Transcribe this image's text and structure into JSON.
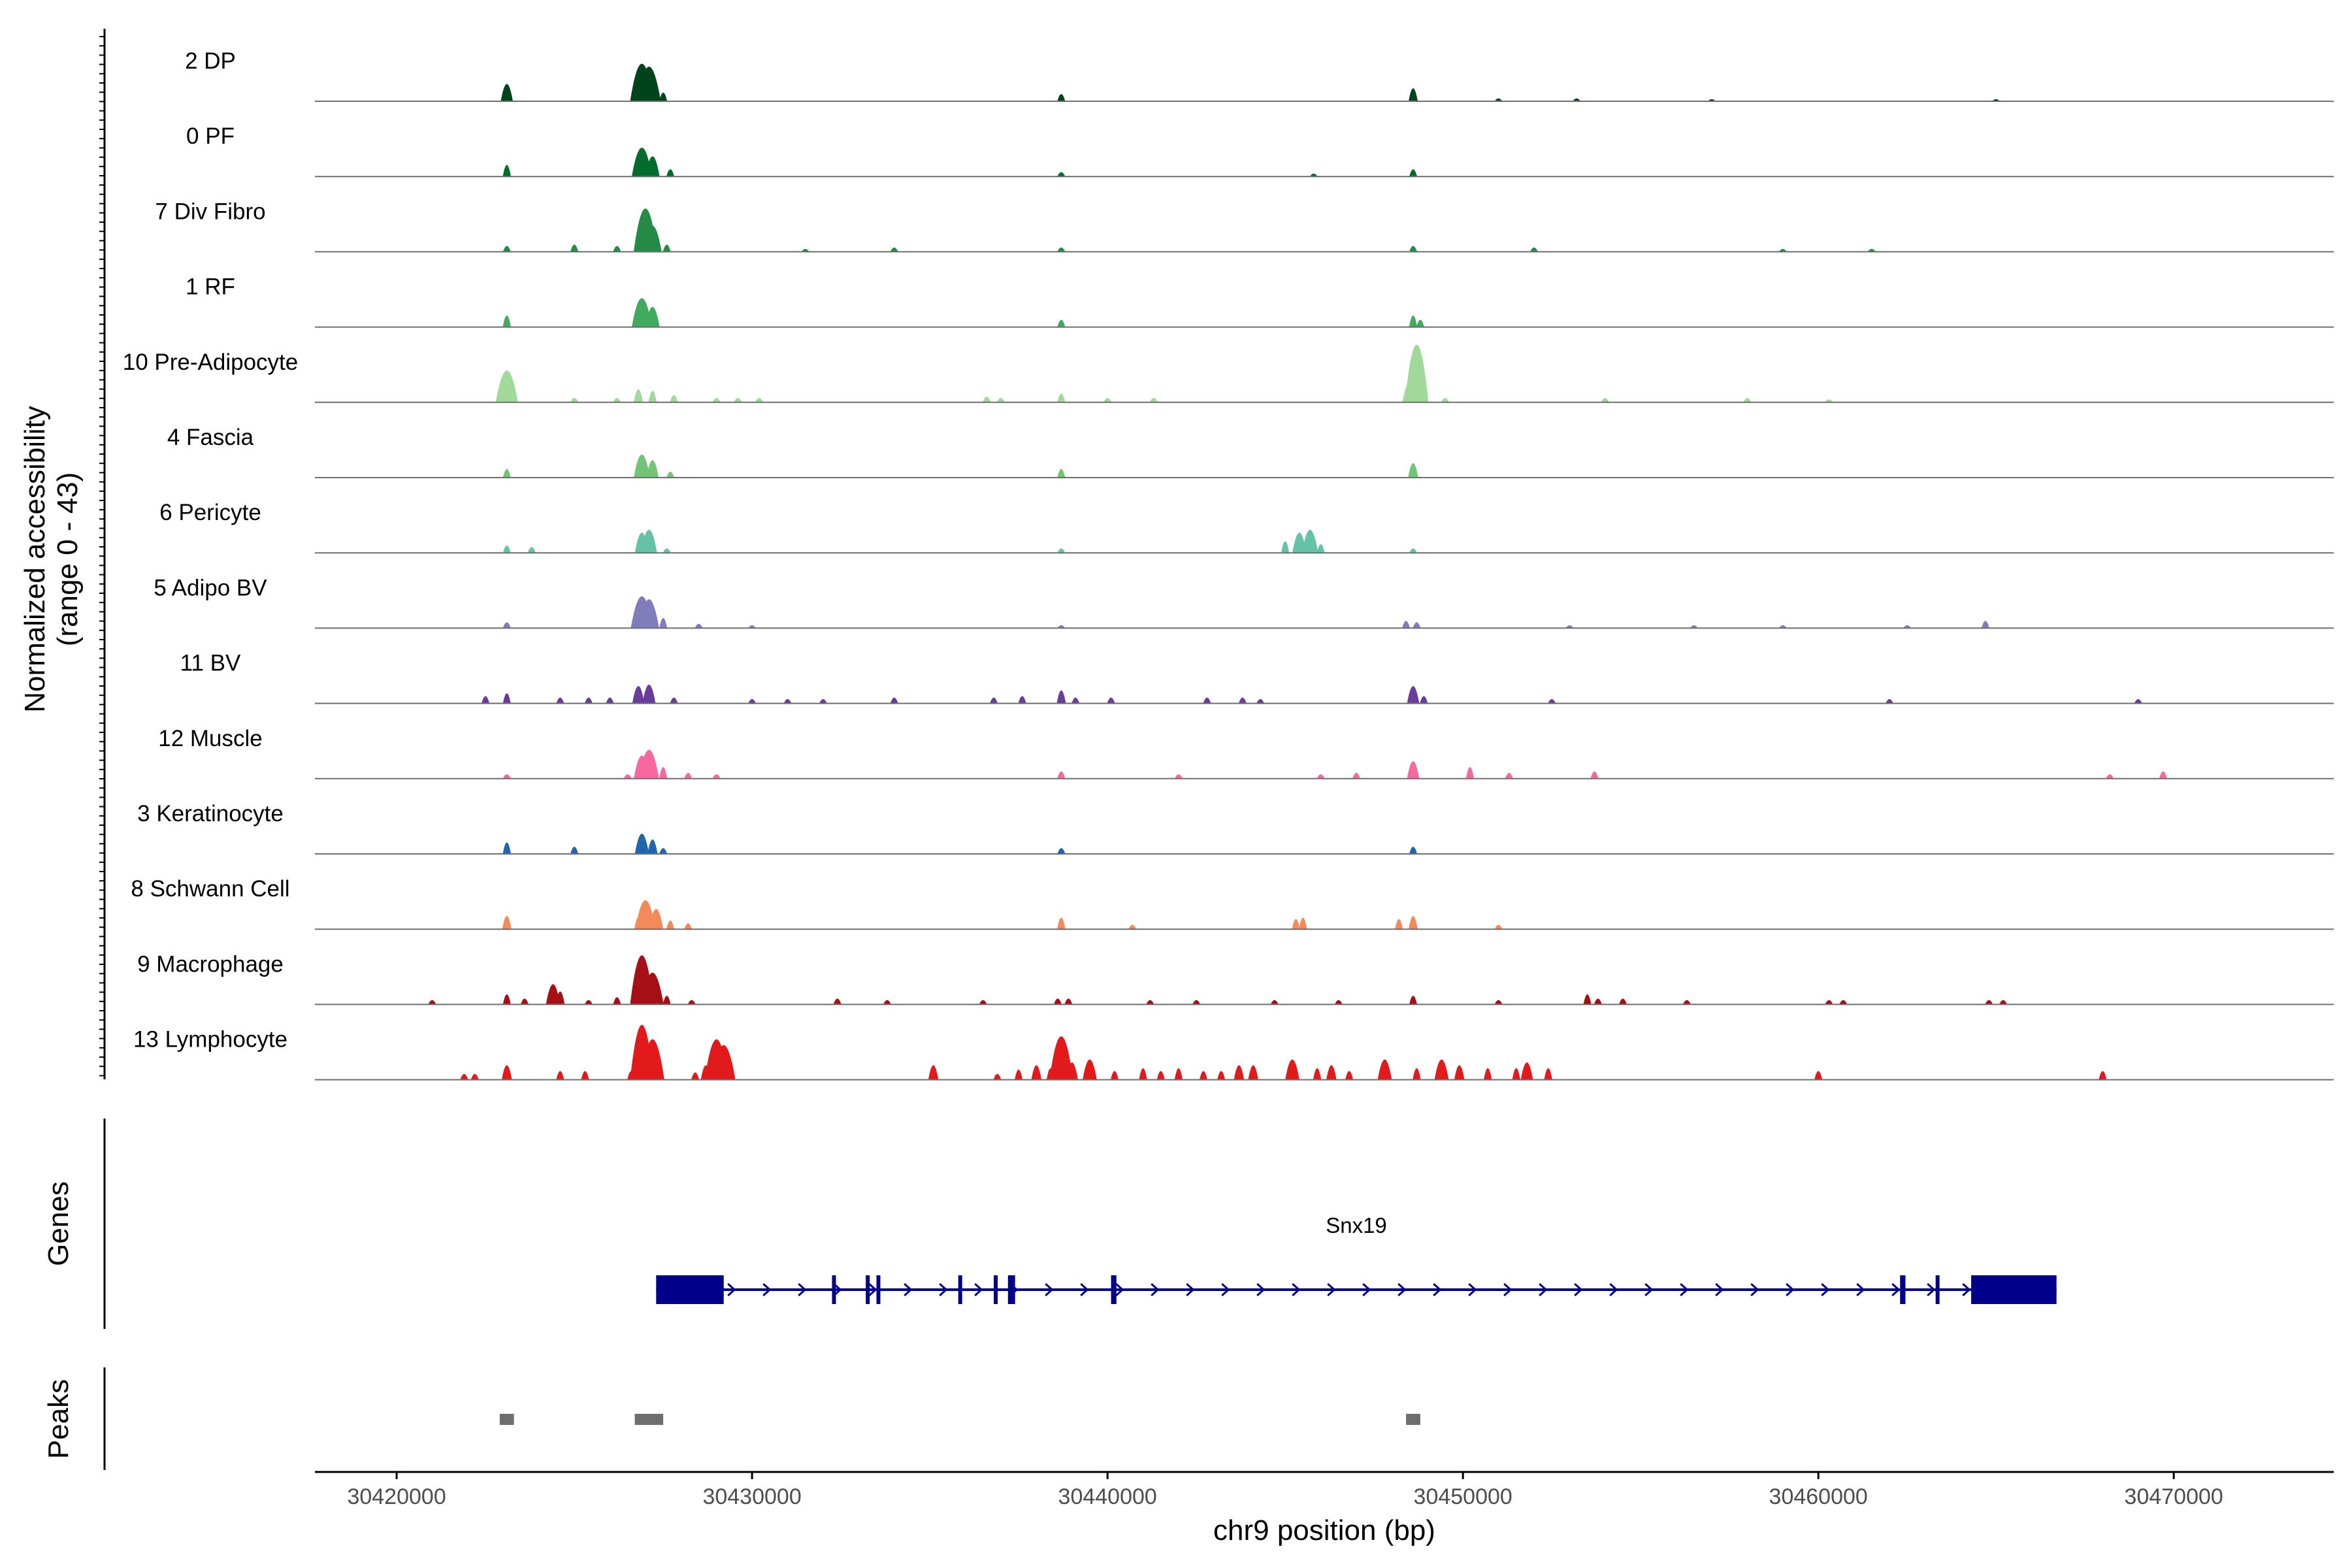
{
  "chart_data": {
    "type": "area",
    "title": "",
    "ylabel": "Normalized accessibility",
    "ylabel_range": "(range 0 - 43)",
    "ylim": [
      0,
      43
    ],
    "xlabel": "chr9 position (bp)",
    "xlim": [
      30417700,
      30474500
    ],
    "x_ticks": [
      30420000,
      30430000,
      30440000,
      30450000,
      30460000,
      30470000
    ],
    "x_tick_labels": [
      "30420000",
      "30430000",
      "30440000",
      "30450000",
      "30460000",
      "30470000"
    ],
    "series": [
      {
        "name": "2 DP",
        "color": "#00441b",
        "peaks": [
          [
            30423100,
            12
          ],
          [
            30426900,
            26
          ],
          [
            30427100,
            24
          ],
          [
            30427500,
            6
          ],
          [
            30438700,
            5
          ],
          [
            30448600,
            9
          ],
          [
            30451000,
            2
          ],
          [
            30453200,
            2
          ],
          [
            30457000,
            1.5
          ],
          [
            30465000,
            1.5
          ]
        ]
      },
      {
        "name": "0 PF",
        "color": "#006d2c",
        "peaks": [
          [
            30423100,
            8
          ],
          [
            30426900,
            20
          ],
          [
            30427200,
            14
          ],
          [
            30427700,
            5
          ],
          [
            30438700,
            3
          ],
          [
            30445800,
            2
          ],
          [
            30448600,
            5
          ]
        ]
      },
      {
        "name": "7 Div Fibro",
        "color": "#238b45",
        "peaks": [
          [
            30423100,
            4
          ],
          [
            30425000,
            5
          ],
          [
            30426200,
            4
          ],
          [
            30426900,
            16
          ],
          [
            30427000,
            30
          ],
          [
            30427200,
            18
          ],
          [
            30427600,
            5
          ],
          [
            30431500,
            2
          ],
          [
            30434000,
            3
          ],
          [
            30438700,
            3
          ],
          [
            30448600,
            4
          ],
          [
            30452000,
            3
          ],
          [
            30459000,
            2
          ],
          [
            30461500,
            2
          ]
        ]
      },
      {
        "name": "1 RF",
        "color": "#41ab5d",
        "peaks": [
          [
            30423100,
            8
          ],
          [
            30426900,
            20
          ],
          [
            30427200,
            14
          ],
          [
            30438700,
            5
          ],
          [
            30448600,
            8
          ],
          [
            30448800,
            5
          ]
        ]
      },
      {
        "name": "10 Pre-Adipocyte",
        "color": "#a1d99b",
        "peaks": [
          [
            30423100,
            22
          ],
          [
            30423300,
            8
          ],
          [
            30425000,
            3
          ],
          [
            30426200,
            3
          ],
          [
            30426800,
            9
          ],
          [
            30427200,
            8
          ],
          [
            30427800,
            5
          ],
          [
            30429000,
            3
          ],
          [
            30429600,
            3
          ],
          [
            30430200,
            3
          ],
          [
            30436600,
            4
          ],
          [
            30437000,
            3
          ],
          [
            30438700,
            6
          ],
          [
            30440000,
            3
          ],
          [
            30441300,
            3
          ],
          [
            30448500,
            14
          ],
          [
            30448700,
            40
          ],
          [
            30449500,
            3
          ],
          [
            30454000,
            3
          ],
          [
            30458000,
            3
          ],
          [
            30460300,
            2
          ]
        ]
      },
      {
        "name": "4 Fascia",
        "color": "#74c476",
        "peaks": [
          [
            30423100,
            6
          ],
          [
            30426900,
            16
          ],
          [
            30427200,
            12
          ],
          [
            30427700,
            4
          ],
          [
            30438700,
            6
          ],
          [
            30448600,
            10
          ]
        ]
      },
      {
        "name": "6 Pericyte",
        "color": "#66c2a4",
        "peaks": [
          [
            30423100,
            5
          ],
          [
            30423800,
            4
          ],
          [
            30426900,
            14
          ],
          [
            30427100,
            16
          ],
          [
            30427600,
            3
          ],
          [
            30438700,
            3
          ],
          [
            30445000,
            8
          ],
          [
            30445400,
            14
          ],
          [
            30445700,
            16
          ],
          [
            30446000,
            6
          ],
          [
            30448600,
            3
          ]
        ]
      },
      {
        "name": "5 Adipo BV",
        "color": "#807dba",
        "peaks": [
          [
            30423100,
            4
          ],
          [
            30426900,
            22
          ],
          [
            30427100,
            20
          ],
          [
            30427500,
            7
          ],
          [
            30428500,
            3
          ],
          [
            30430000,
            2
          ],
          [
            30438700,
            2
          ],
          [
            30448400,
            5
          ],
          [
            30448700,
            4
          ],
          [
            30453000,
            2
          ],
          [
            30456500,
            2
          ],
          [
            30459000,
            2
          ],
          [
            30462500,
            2
          ],
          [
            30464700,
            5
          ]
        ]
      },
      {
        "name": "11 BV",
        "color": "#6a3d9a",
        "peaks": [
          [
            30422500,
            5
          ],
          [
            30423100,
            7
          ],
          [
            30424600,
            4
          ],
          [
            30425400,
            4
          ],
          [
            30426000,
            4
          ],
          [
            30426800,
            12
          ],
          [
            30427100,
            13
          ],
          [
            30427800,
            4
          ],
          [
            30430000,
            3
          ],
          [
            30431000,
            3
          ],
          [
            30432000,
            3
          ],
          [
            30434000,
            4
          ],
          [
            30436800,
            4
          ],
          [
            30437600,
            5
          ],
          [
            30438700,
            9
          ],
          [
            30439100,
            4
          ],
          [
            30440100,
            4
          ],
          [
            30442800,
            4
          ],
          [
            30443800,
            4
          ],
          [
            30444300,
            3
          ],
          [
            30448600,
            12
          ],
          [
            30448900,
            5
          ],
          [
            30452500,
            3
          ],
          [
            30462000,
            3
          ],
          [
            30469000,
            3
          ]
        ]
      },
      {
        "name": "12 Muscle",
        "color": "#f768a1",
        "peaks": [
          [
            30423100,
            3
          ],
          [
            30426500,
            3
          ],
          [
            30426900,
            16
          ],
          [
            30427100,
            20
          ],
          [
            30427500,
            8
          ],
          [
            30428200,
            4
          ],
          [
            30429000,
            3
          ],
          [
            30438700,
            5
          ],
          [
            30442000,
            3
          ],
          [
            30446000,
            3
          ],
          [
            30447000,
            4
          ],
          [
            30448600,
            12
          ],
          [
            30450200,
            8
          ],
          [
            30451300,
            4
          ],
          [
            30453700,
            5
          ],
          [
            30468200,
            3
          ],
          [
            30469700,
            5
          ]
        ]
      },
      {
        "name": "3 Keratinocyte",
        "color": "#2166ac",
        "peaks": [
          [
            30423100,
            8
          ],
          [
            30425000,
            5
          ],
          [
            30426900,
            14
          ],
          [
            30427200,
            10
          ],
          [
            30427500,
            4
          ],
          [
            30438700,
            4
          ],
          [
            30448600,
            5
          ]
        ]
      },
      {
        "name": "8 Schwann Cell",
        "color": "#f4895a",
        "peaks": [
          [
            30423100,
            9
          ],
          [
            30426800,
            8
          ],
          [
            30427000,
            20
          ],
          [
            30427300,
            14
          ],
          [
            30427700,
            6
          ],
          [
            30428200,
            4
          ],
          [
            30438700,
            8
          ],
          [
            30440700,
            3
          ],
          [
            30445300,
            7
          ],
          [
            30445500,
            8
          ],
          [
            30448200,
            7
          ],
          [
            30448600,
            9
          ],
          [
            30451000,
            3
          ]
        ]
      },
      {
        "name": "9 Macrophage",
        "color": "#a50f15",
        "peaks": [
          [
            30421000,
            3
          ],
          [
            30423100,
            7
          ],
          [
            30423600,
            4
          ],
          [
            30424400,
            14
          ],
          [
            30424600,
            9
          ],
          [
            30425400,
            3
          ],
          [
            30426200,
            5
          ],
          [
            30426900,
            34
          ],
          [
            30427200,
            22
          ],
          [
            30427600,
            6
          ],
          [
            30428300,
            3
          ],
          [
            30432400,
            4
          ],
          [
            30433800,
            3
          ],
          [
            30436500,
            3
          ],
          [
            30438600,
            4
          ],
          [
            30438900,
            4
          ],
          [
            30441200,
            3
          ],
          [
            30442500,
            3
          ],
          [
            30444700,
            3
          ],
          [
            30446500,
            3
          ],
          [
            30448600,
            6
          ],
          [
            30451000,
            3
          ],
          [
            30453500,
            7
          ],
          [
            30453800,
            4
          ],
          [
            30454500,
            4
          ],
          [
            30456300,
            3
          ],
          [
            30460300,
            3
          ],
          [
            30460700,
            3
          ],
          [
            30464800,
            3
          ],
          [
            30465200,
            3
          ]
        ]
      },
      {
        "name": "13 Lymphocyte",
        "color": "#e31a1c",
        "peaks": [
          [
            30421900,
            4
          ],
          [
            30422200,
            4
          ],
          [
            30423100,
            10
          ],
          [
            30424600,
            6
          ],
          [
            30425300,
            6
          ],
          [
            30426600,
            6
          ],
          [
            30426900,
            38
          ],
          [
            30427200,
            28
          ],
          [
            30428400,
            5
          ],
          [
            30428700,
            10
          ],
          [
            30429000,
            28
          ],
          [
            30429200,
            24
          ],
          [
            30435100,
            10
          ],
          [
            30436900,
            4
          ],
          [
            30437500,
            7
          ],
          [
            30438000,
            10
          ],
          [
            30438400,
            8
          ],
          [
            30438700,
            30
          ],
          [
            30439000,
            12
          ],
          [
            30439500,
            14
          ],
          [
            30440200,
            6
          ],
          [
            30441000,
            8
          ],
          [
            30441500,
            6
          ],
          [
            30442000,
            8
          ],
          [
            30442700,
            6
          ],
          [
            30443200,
            6
          ],
          [
            30443700,
            10
          ],
          [
            30444100,
            10
          ],
          [
            30445200,
            14
          ],
          [
            30445900,
            8
          ],
          [
            30446300,
            10
          ],
          [
            30446800,
            6
          ],
          [
            30447800,
            14
          ],
          [
            30448700,
            8
          ],
          [
            30449400,
            14
          ],
          [
            30449900,
            10
          ],
          [
            30450700,
            8
          ],
          [
            30451500,
            8
          ],
          [
            30451800,
            12
          ],
          [
            30452400,
            8
          ],
          [
            30460000,
            6
          ],
          [
            30468000,
            6
          ]
        ]
      }
    ],
    "genes": [
      {
        "name": "Snx19",
        "start": 30427300,
        "end": 30466700,
        "strand": "+",
        "color": "#00008b",
        "exons": [
          [
            30427300,
            30429200
          ],
          [
            30432250,
            30432350
          ],
          [
            30433200,
            30433300
          ],
          [
            30433500,
            30433600
          ],
          [
            30435800,
            30435900
          ],
          [
            30436800,
            30436850
          ],
          [
            30437200,
            30437400
          ],
          [
            30440100,
            30440250
          ],
          [
            30462300,
            30462450
          ],
          [
            30463300,
            30463350
          ],
          [
            30464300,
            30466700
          ]
        ]
      }
    ],
    "peaks_track": [
      [
        30422900,
        30423300
      ],
      [
        30426700,
        30427500
      ],
      [
        30448400,
        30448800
      ]
    ],
    "peak_color": "#6e6e6e",
    "panel_labels": {
      "genes": "Genes",
      "peaks": "Peaks"
    }
  }
}
